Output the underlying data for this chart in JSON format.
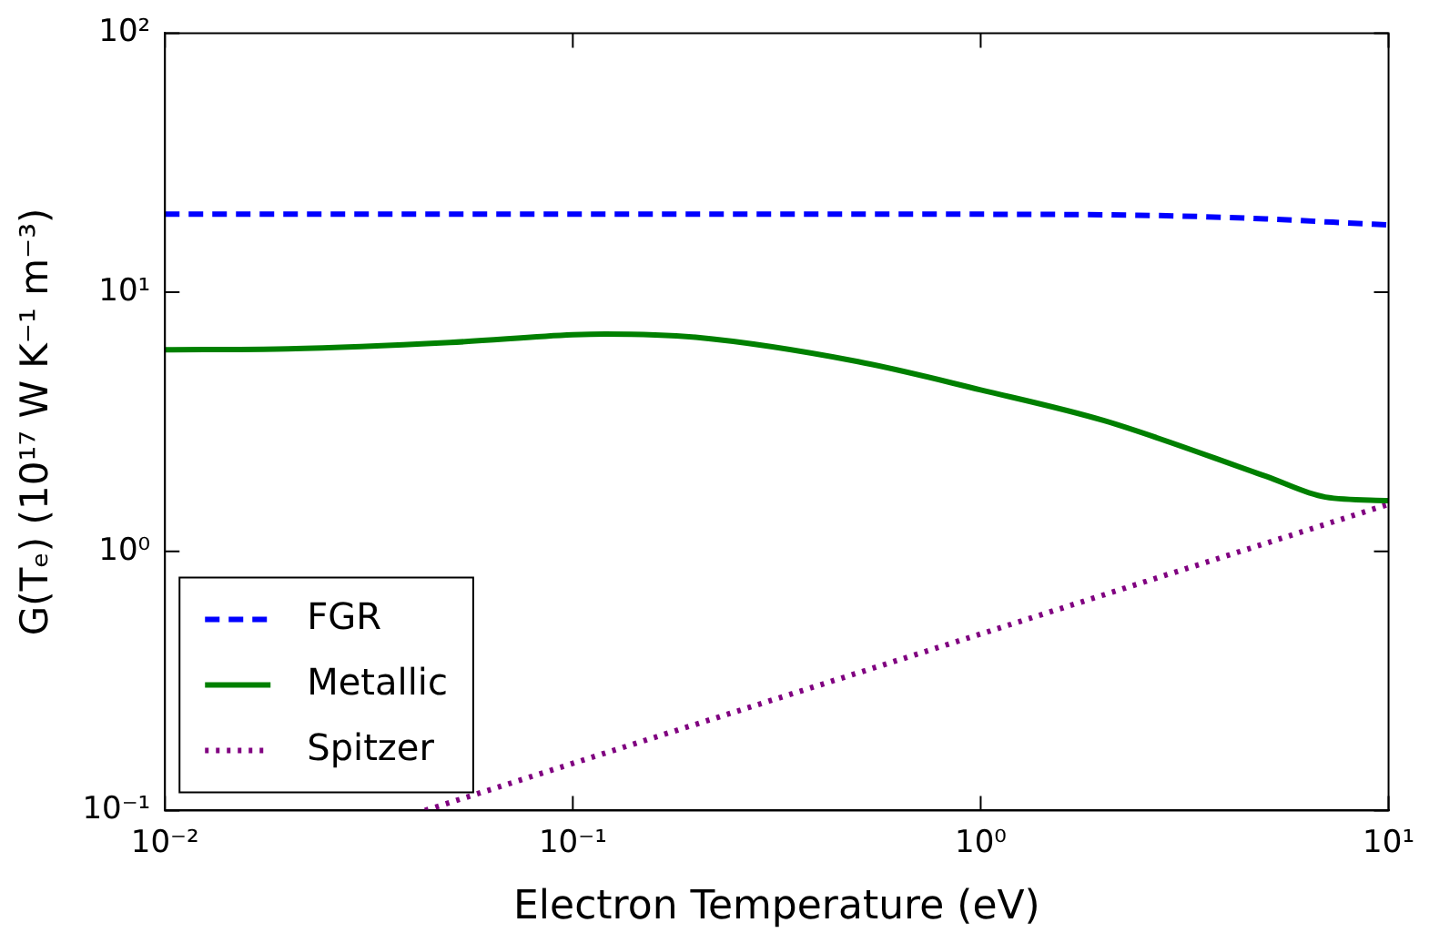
{
  "chart_data": {
    "type": "line",
    "xlabel": "Electron Temperature (eV)",
    "ylabel": "G(Tₑ) (10¹⁷ W K⁻¹ m⁻³)",
    "log": "xy",
    "grid": false,
    "legend": "bottom left",
    "marker": "none",
    "xlim": [
      0.01,
      10
    ],
    "xticks": [
      {
        "value": 0.01,
        "label": "10⁻²"
      },
      {
        "value": 0.1,
        "label": "10⁻¹"
      },
      {
        "value": 1,
        "label": "10⁰"
      },
      {
        "value": 10,
        "label": "10¹"
      }
    ],
    "ylim": [
      0.1,
      100
    ],
    "yticks": [
      {
        "value": 0.1,
        "label": "10⁻¹"
      },
      {
        "value": 1,
        "label": "10⁰"
      },
      {
        "value": 10,
        "label": "10¹"
      },
      {
        "value": 100,
        "label": "10²"
      }
    ],
    "series": [
      {
        "name": "FGR",
        "color": "#0000ff",
        "line_style": "dashed",
        "x": [
          0.01,
          0.1,
          1,
          2,
          3,
          5,
          7,
          10
        ],
        "values": [
          20,
          20,
          20,
          19.9,
          19.7,
          19.2,
          18.7,
          18.2
        ]
      },
      {
        "name": "Metallic",
        "color": "#008000",
        "line_style": "solid",
        "x": [
          0.01,
          0.02,
          0.05,
          0.1,
          0.12,
          0.2,
          0.5,
          1,
          2,
          5,
          7,
          10
        ],
        "values": [
          6.0,
          6.05,
          6.4,
          6.85,
          6.9,
          6.7,
          5.4,
          4.2,
          3.2,
          1.95,
          1.62,
          1.57
        ]
      },
      {
        "name": "Spitzer",
        "color": "#800080",
        "line_style": "dotted",
        "x": [
          0.0434,
          0.1,
          1,
          10
        ],
        "values": [
          0.1,
          0.152,
          0.48,
          1.52
        ]
      }
    ]
  }
}
